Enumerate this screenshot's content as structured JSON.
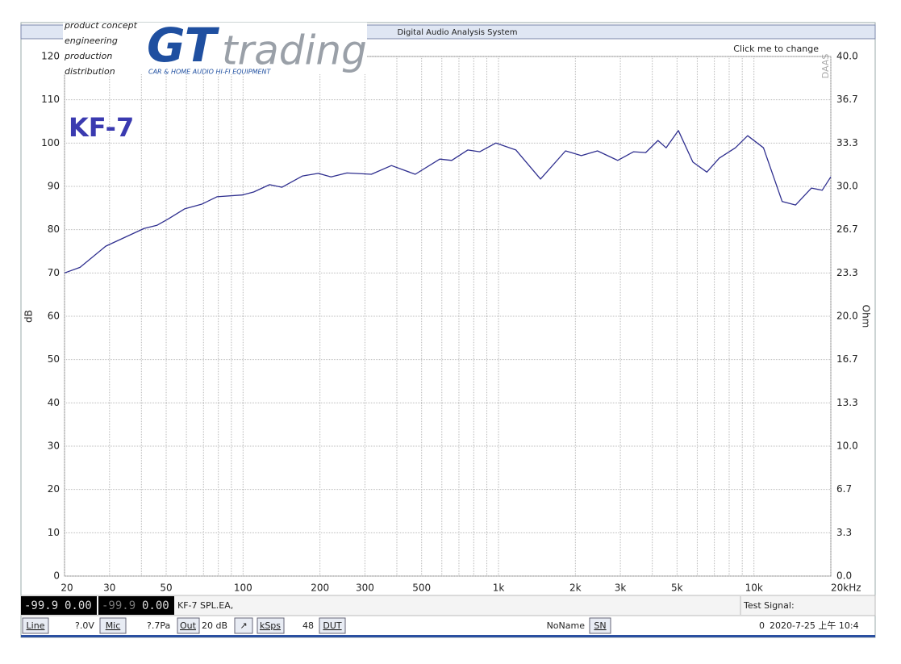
{
  "chart_data": {
    "type": "line",
    "annotation": "KF-7",
    "ylabel": "dB",
    "y2label": "Ohm",
    "xscale": "log",
    "xlim": [
      20,
      20000
    ],
    "xticks": [
      20,
      30,
      50,
      100,
      200,
      300,
      500,
      {
        "value": 1000,
        "label": "1k"
      },
      {
        "value": 2000,
        "label": "2k"
      },
      {
        "value": 3000,
        "label": "3k"
      },
      {
        "value": 5000,
        "label": "5k"
      },
      {
        "value": 10000,
        "label": "10k"
      },
      {
        "value": 20000,
        "label": "20kHz"
      }
    ],
    "xgrid": [
      20,
      30,
      40,
      50,
      60,
      70,
      80,
      90,
      100,
      200,
      300,
      400,
      500,
      600,
      700,
      800,
      900,
      1000,
      2000,
      3000,
      4000,
      5000,
      6000,
      7000,
      8000,
      9000,
      10000,
      20000
    ],
    "ylim": [
      0,
      120
    ],
    "yticks": [
      0,
      10,
      20,
      30,
      40,
      50,
      60,
      70,
      80,
      90,
      100,
      110,
      120
    ],
    "y2lim": [
      0,
      40
    ],
    "y2ticks": [
      {
        "value": 0,
        "label": "0.0"
      },
      {
        "value": 3.333,
        "label": "3.3"
      },
      {
        "value": 6.667,
        "label": "6.7"
      },
      {
        "value": 10,
        "label": "10.0"
      },
      {
        "value": 13.333,
        "label": "13.3"
      },
      {
        "value": 16.667,
        "label": "16.7"
      },
      {
        "value": 20,
        "label": "20.0"
      },
      {
        "value": 23.333,
        "label": "23.3"
      },
      {
        "value": 26.667,
        "label": "26.7"
      },
      {
        "value": 30,
        "label": "30.0"
      },
      {
        "value": 33.333,
        "label": "33.3"
      },
      {
        "value": 36.667,
        "label": "36.7"
      },
      {
        "value": 40,
        "label": "40.0"
      }
    ],
    "grid": true,
    "x": [
      20,
      23,
      29,
      41,
      46,
      51,
      59,
      69,
      79,
      99,
      110,
      127,
      142,
      171,
      197,
      221,
      255,
      318,
      381,
      472,
      589,
      656,
      758,
      845,
      976,
      1170,
      1460,
      1830,
      2110,
      2440,
      2930,
      3380,
      3770,
      4210,
      4530,
      5060,
      5770,
      6540,
      7310,
      8460,
      9450,
      10900,
      12900,
      14560,
      16800,
      18500,
      20000
    ],
    "series": [
      {
        "name": "KF-7 SPL",
        "color": "#2f2f8f",
        "values": [
          70,
          71.3,
          76.2,
          80.3,
          81,
          82.5,
          84.8,
          85.9,
          87.6,
          88,
          88.7,
          90.4,
          89.8,
          92.4,
          93,
          92.2,
          93.1,
          92.8,
          94.8,
          92.8,
          96.3,
          96,
          98.4,
          98,
          100,
          98.4,
          91.7,
          98.2,
          97.1,
          98.2,
          96,
          98,
          97.8,
          100.6,
          98.9,
          102.9,
          95.6,
          93.3,
          96.5,
          98.9,
          101.7,
          98.9,
          86.5,
          85.7,
          89.6,
          89.1,
          92.2
        ]
      }
    ]
  },
  "ui": {
    "window_title": "Digital Audio Analysis System",
    "change_hint": "Click me to change",
    "watermark": "DAAS",
    "logo": {
      "lines": [
        "product concept",
        "engineering",
        "production",
        "distribution"
      ],
      "brand": "GT",
      "brand2": "trading",
      "tagline": "CAR & HOME AUDIO HI-FI EQUIPMENT"
    },
    "meters": [
      "-99.9",
      "0.00",
      "-99.9",
      "0.00"
    ],
    "file": "KF-7 SPL.EA,",
    "test_signal": "Test Signal:",
    "status": {
      "line": "Line",
      "line_v": "?.0V",
      "mic": "Mic",
      "mic_v": "?.7Pa",
      "out": "Out",
      "out_v": "20 dB",
      "ksps": "kSps",
      "ksps_v": "48",
      "dut": "DUT",
      "name": "NoName",
      "sn": "SN",
      "count": "0",
      "datetime": "2020-7-25 上午 10:4"
    }
  }
}
